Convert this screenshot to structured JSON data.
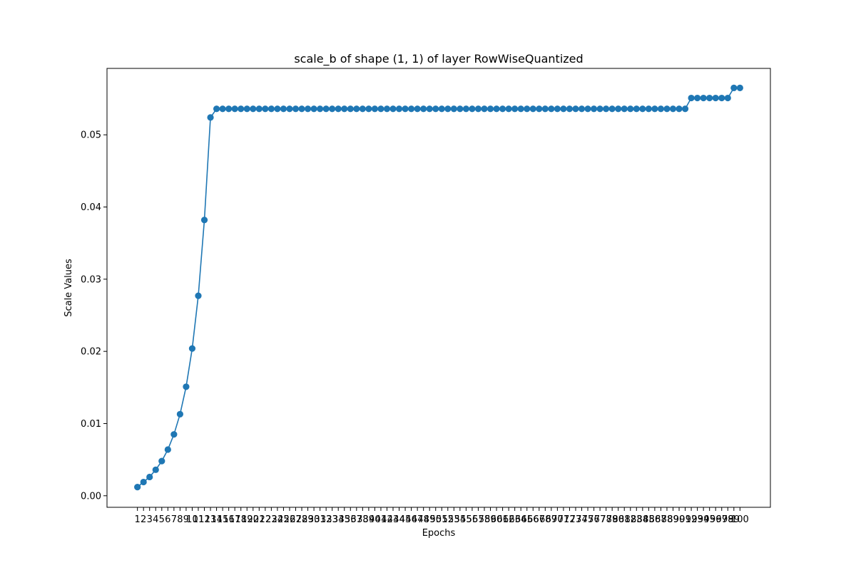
{
  "chart_data": {
    "type": "line",
    "title": "scale_b of shape (1, 1) of layer RowWiseQuantized",
    "xlabel": "Epochs",
    "ylabel": "Scale Values",
    "x": [
      1,
      2,
      3,
      4,
      5,
      6,
      7,
      8,
      9,
      10,
      11,
      12,
      13,
      14,
      15,
      16,
      17,
      18,
      19,
      20,
      21,
      22,
      23,
      24,
      25,
      26,
      27,
      28,
      29,
      30,
      31,
      32,
      33,
      34,
      35,
      36,
      37,
      38,
      39,
      40,
      41,
      42,
      43,
      44,
      45,
      46,
      47,
      48,
      49,
      50,
      51,
      52,
      53,
      54,
      55,
      56,
      57,
      58,
      59,
      60,
      61,
      62,
      63,
      64,
      65,
      66,
      67,
      68,
      69,
      70,
      71,
      72,
      73,
      74,
      75,
      76,
      77,
      78,
      79,
      80,
      81,
      82,
      83,
      84,
      85,
      86,
      87,
      88,
      89,
      90,
      91,
      92,
      93,
      94,
      95,
      96,
      97,
      98,
      99,
      100
    ],
    "x_tick_labels": [
      "1",
      "2",
      "3",
      "4",
      "5",
      "6",
      "7",
      "8",
      "9",
      "10",
      "11",
      "12",
      "13",
      "14",
      "15",
      "16",
      "17",
      "18",
      "19",
      "20",
      "21",
      "22",
      "23",
      "24",
      "25",
      "26",
      "27",
      "28",
      "29",
      "30",
      "31",
      "32",
      "33",
      "34",
      "35",
      "36",
      "37",
      "38",
      "39",
      "40",
      "41",
      "42",
      "43",
      "44",
      "45",
      "46",
      "47",
      "48",
      "49",
      "50",
      "51",
      "52",
      "53",
      "54",
      "55",
      "56",
      "57",
      "58",
      "59",
      "60",
      "61",
      "62",
      "63",
      "64",
      "65",
      "66",
      "67",
      "68",
      "69",
      "70",
      "71",
      "72",
      "73",
      "74",
      "75",
      "76",
      "77",
      "78",
      "79",
      "80",
      "81",
      "82",
      "83",
      "84",
      "85",
      "86",
      "87",
      "88",
      "89",
      "90",
      "91",
      "92",
      "93",
      "94",
      "95",
      "96",
      "97",
      "98",
      "99",
      "100"
    ],
    "y_ticks": [
      0.0,
      0.01,
      0.02,
      0.03,
      0.04,
      0.05
    ],
    "y_tick_labels": [
      "0.00",
      "0.01",
      "0.02",
      "0.03",
      "0.04",
      "0.05"
    ],
    "xlim": [
      -4,
      105
    ],
    "ylim": [
      -0.0016,
      0.0592
    ],
    "grid": false,
    "series": [
      {
        "color": "#1f77b4",
        "marker": "circle",
        "values": [
          0.0012,
          0.0019,
          0.0026,
          0.0036,
          0.0048,
          0.0064,
          0.0085,
          0.0113,
          0.0151,
          0.0204,
          0.0277,
          0.0382,
          0.0524,
          0.0536,
          0.0536,
          0.0536,
          0.0536,
          0.0536,
          0.0536,
          0.0536,
          0.0536,
          0.0536,
          0.0536,
          0.0536,
          0.0536,
          0.0536,
          0.0536,
          0.0536,
          0.0536,
          0.0536,
          0.0536,
          0.0536,
          0.0536,
          0.0536,
          0.0536,
          0.0536,
          0.0536,
          0.0536,
          0.0536,
          0.0536,
          0.0536,
          0.0536,
          0.0536,
          0.0536,
          0.0536,
          0.0536,
          0.0536,
          0.0536,
          0.0536,
          0.0536,
          0.0536,
          0.0536,
          0.0536,
          0.0536,
          0.0536,
          0.0536,
          0.0536,
          0.0536,
          0.0536,
          0.0536,
          0.0536,
          0.0536,
          0.0536,
          0.0536,
          0.0536,
          0.0536,
          0.0536,
          0.0536,
          0.0536,
          0.0536,
          0.0536,
          0.0536,
          0.0536,
          0.0536,
          0.0536,
          0.0536,
          0.0536,
          0.0536,
          0.0536,
          0.0536,
          0.0536,
          0.0536,
          0.0536,
          0.0536,
          0.0536,
          0.0536,
          0.0536,
          0.0536,
          0.0536,
          0.0536,
          0.0536,
          0.0551,
          0.0551,
          0.0551,
          0.0551,
          0.0551,
          0.0551,
          0.0551,
          0.0565,
          0.0565
        ]
      }
    ]
  }
}
